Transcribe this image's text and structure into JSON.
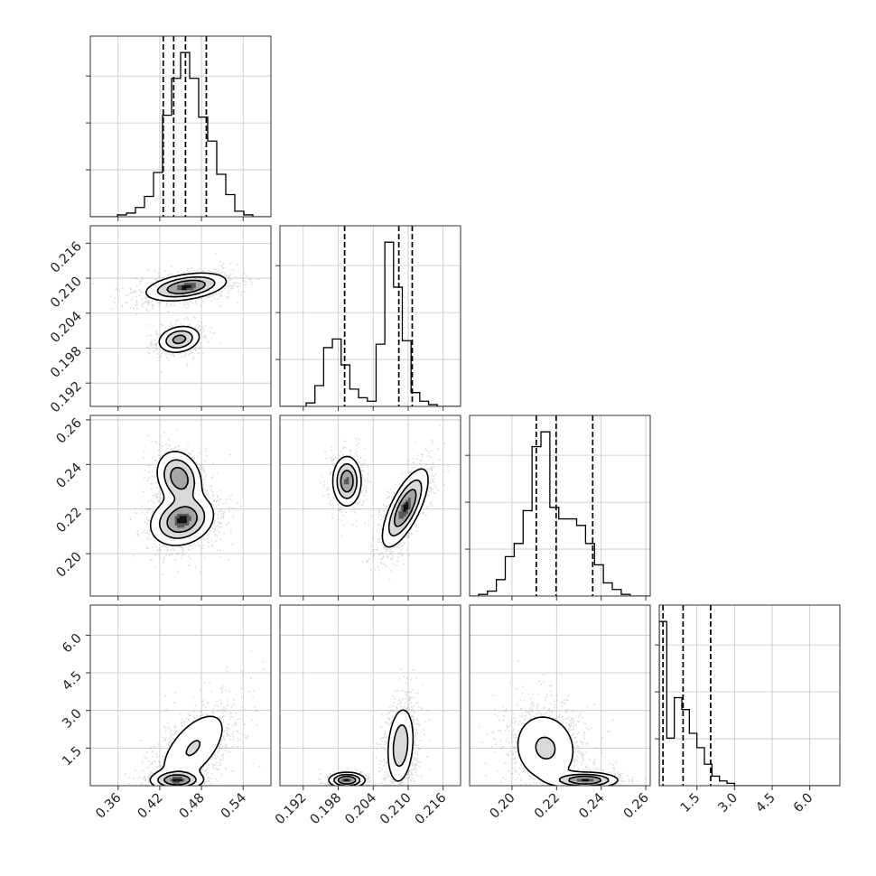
{
  "chart_data": {
    "type": "corner",
    "grid": true,
    "quantile_line_style": "dashed",
    "colors": {
      "ink": "#000000",
      "grid": "#c4c4c4",
      "axes": "#333333",
      "fill": "#7a7a7a",
      "points": "#8a8a8a"
    },
    "parameters": [
      {
        "range": [
          0.32,
          0.58
        ],
        "ticks": [
          0.36,
          0.42,
          0.48,
          0.54
        ],
        "tick_labels": [
          "0.36",
          "0.42",
          "0.48",
          "0.54"
        ]
      },
      {
        "range": [
          0.188,
          0.219
        ],
        "ticks": [
          0.192,
          0.198,
          0.204,
          0.21,
          0.216
        ],
        "tick_labels": [
          "0.192",
          "0.198",
          "0.204",
          "0.210",
          "0.216"
        ]
      },
      {
        "range": [
          0.181,
          0.262
        ],
        "ticks": [
          0.2,
          0.22,
          0.24,
          0.26
        ],
        "tick_labels": [
          "0.20",
          "0.22",
          "0.24",
          "0.26"
        ]
      },
      {
        "range": [
          0.0,
          7.2
        ],
        "ticks": [
          1.5,
          3.0,
          4.5,
          6.0
        ],
        "tick_labels": [
          "1.5",
          "3.0",
          "4.5",
          "6.0"
        ]
      }
    ],
    "histograms": [
      {
        "bin_edges": [
          0.32,
          0.333,
          0.346,
          0.359,
          0.372,
          0.385,
          0.398,
          0.411,
          0.424,
          0.437,
          0.45,
          0.463,
          0.476,
          0.489,
          0.502,
          0.515,
          0.528,
          0.541,
          0.554,
          0.567,
          0.58
        ],
        "counts": [
          0,
          0,
          0,
          1,
          2,
          5,
          11,
          24,
          55,
          75,
          89,
          75,
          54,
          41,
          23,
          12,
          3,
          1,
          0,
          0
        ],
        "quantiles": [
          0.425,
          0.44,
          0.457,
          0.487
        ]
      },
      {
        "bin_edges": [
          0.188,
          0.1895,
          0.191,
          0.1925,
          0.194,
          0.1955,
          0.197,
          0.1985,
          0.2,
          0.2015,
          0.203,
          0.2045,
          0.206,
          0.2075,
          0.209,
          0.2105,
          0.212,
          0.2135,
          0.215,
          0.2165,
          0.218,
          0.219
        ],
        "counts": [
          0,
          0,
          0,
          2,
          12,
          34,
          39,
          24,
          10,
          5,
          3,
          36,
          95,
          69,
          38,
          8,
          3,
          1,
          0,
          0,
          0
        ],
        "quantiles": [
          0.1991,
          0.2084,
          0.2107
        ]
      },
      {
        "bin_edges": [
          0.181,
          0.185,
          0.189,
          0.193,
          0.197,
          0.201,
          0.205,
          0.209,
          0.213,
          0.217,
          0.221,
          0.225,
          0.229,
          0.233,
          0.237,
          0.241,
          0.245,
          0.249,
          0.253,
          0.257,
          0.262
        ],
        "counts": [
          0,
          1,
          3,
          10,
          24,
          32,
          52,
          91,
          100,
          54,
          47,
          47,
          43,
          32,
          19,
          8,
          4,
          1,
          0,
          0
        ],
        "quantiles": [
          0.2109,
          0.2198,
          0.2362
        ]
      },
      {
        "bin_edges": [
          0.0,
          0.3,
          0.6,
          0.9,
          1.2,
          1.5,
          1.8,
          2.1,
          2.4,
          2.7,
          3.0,
          3.3,
          3.6,
          3.9,
          4.2,
          4.5,
          4.8,
          5.1,
          5.4,
          5.7,
          6.0,
          6.3,
          6.6,
          6.9,
          7.2
        ],
        "counts": [
          69,
          20,
          37,
          32,
          22,
          16,
          9,
          4,
          2,
          1,
          0,
          0,
          0,
          0,
          0,
          0,
          0,
          0,
          0,
          0,
          0,
          0,
          0,
          0
        ],
        "quantiles": [
          0.15,
          0.95,
          2.05
        ]
      }
    ],
    "pairs": [
      {
        "row": 1,
        "col": 0,
        "modes": [
          {
            "mean": [
              0.458,
              0.2085
            ],
            "sd": [
              0.028,
              0.00115
            ],
            "rho": 0.4,
            "weight": 0.7
          },
          {
            "mean": [
              0.448,
              0.1995
            ],
            "sd": [
              0.015,
              0.00115
            ],
            "rho": 0.2,
            "weight": 0.3
          }
        ]
      },
      {
        "row": 2,
        "col": 0,
        "modes": [
          {
            "mean": [
              0.452,
              0.215
            ],
            "sd": [
              0.022,
              0.0055
            ],
            "rho": 0.2,
            "weight": 0.6
          },
          {
            "mean": [
              0.448,
              0.234
            ],
            "sd": [
              0.016,
              0.006
            ],
            "rho": -0.2,
            "weight": 0.4
          }
        ]
      },
      {
        "row": 2,
        "col": 1,
        "modes": [
          {
            "mean": [
              0.2095,
              0.2205
            ],
            "sd": [
              0.0019,
              0.0085
            ],
            "rho": 0.72,
            "weight": 0.65
          },
          {
            "mean": [
              0.1995,
              0.2325
            ],
            "sd": [
              0.0012,
              0.0055
            ],
            "rho": 0.0,
            "weight": 0.35
          }
        ]
      },
      {
        "row": 3,
        "col": 0,
        "modes": [
          {
            "mean": [
              0.468,
              1.5
            ],
            "sd": [
              0.028,
              0.85
            ],
            "rho": 0.6,
            "weight": 0.7
          },
          {
            "mean": [
              0.445,
              0.22
            ],
            "sd": [
              0.018,
              0.18
            ],
            "rho": 0.0,
            "weight": 0.3
          }
        ]
      },
      {
        "row": 3,
        "col": 1,
        "modes": [
          {
            "mean": [
              0.2087,
              1.6
            ],
            "sd": [
              0.0012,
              0.8
            ],
            "rho": 0.2,
            "weight": 0.7
          },
          {
            "mean": [
              0.1995,
              0.22
            ],
            "sd": [
              0.0015,
              0.15
            ],
            "rho": 0.0,
            "weight": 0.3
          }
        ]
      },
      {
        "row": 3,
        "col": 2,
        "modes": [
          {
            "mean": [
              0.215,
              1.5
            ],
            "sd": [
              0.008,
              0.8
            ],
            "rho": -0.1,
            "weight": 0.7
          },
          {
            "mean": [
              0.233,
              0.22
            ],
            "sd": [
              0.007,
              0.15
            ],
            "rho": 0.0,
            "weight": 0.3
          }
        ]
      }
    ]
  }
}
